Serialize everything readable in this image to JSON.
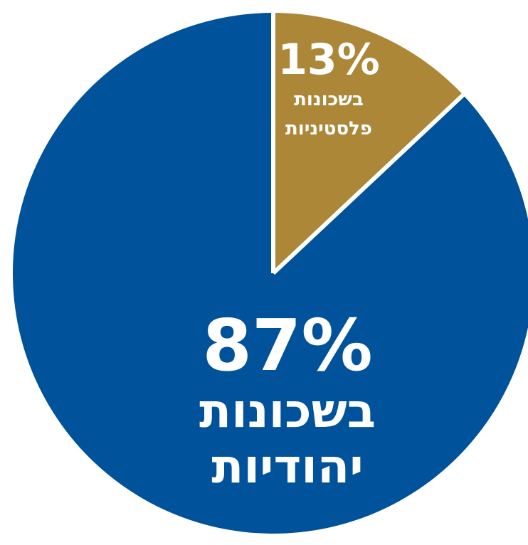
{
  "chart_data": {
    "type": "pie",
    "slices": [
      {
        "value": 87,
        "percent_label": "87%",
        "label_line1": "בשכונות",
        "label_line2": "יהודיות",
        "color": "#00529b"
      },
      {
        "value": 13,
        "percent_label": "13%",
        "label_line1": "בשכונות",
        "label_line2": "פלסטיניות",
        "color": "#ac8737"
      }
    ],
    "separator_color": "#ffffff"
  }
}
